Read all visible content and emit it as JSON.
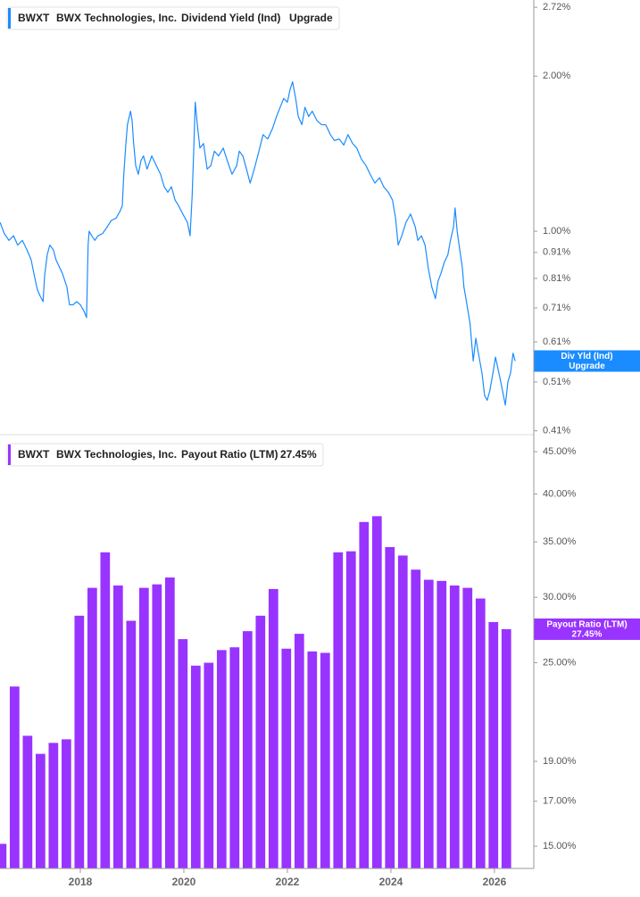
{
  "chart_data": [
    {
      "type": "line",
      "ticker": "BWXT",
      "company": "BWX Technologies, Inc.",
      "log_scale": true,
      "series": [
        {
          "name": "Dividend Yield (Ind)",
          "short_name": "Div Yld (Ind)",
          "status": "Upgrade",
          "color": "#1a8cff",
          "x": [
            2016.45,
            2016.53,
            2016.62,
            2016.71,
            2016.79,
            2016.88,
            2016.97,
            2017.05,
            2017.1,
            2017.17,
            2017.22,
            2017.28,
            2017.31,
            2017.36,
            2017.41,
            2017.48,
            2017.53,
            2017.6,
            2017.65,
            2017.74,
            2017.79,
            2017.86,
            2017.93,
            2018.0,
            2018.07,
            2018.12,
            2018.15,
            2018.17,
            2018.22,
            2018.28,
            2018.34,
            2018.43,
            2018.52,
            2018.6,
            2018.69,
            2018.76,
            2018.81,
            2018.84,
            2018.88,
            2018.91,
            2018.97,
            2019.0,
            2019.03,
            2019.07,
            2019.12,
            2019.17,
            2019.22,
            2019.29,
            2019.38,
            2019.47,
            2019.55,
            2019.62,
            2019.69,
            2019.76,
            2019.83,
            2019.9,
            2019.98,
            2020.07,
            2020.12,
            2020.16,
            2020.19,
            2020.22,
            2020.26,
            2020.31,
            2020.38,
            2020.45,
            2020.52,
            2020.59,
            2020.67,
            2020.76,
            2020.84,
            2020.93,
            2021.02,
            2021.07,
            2021.14,
            2021.21,
            2021.28,
            2021.36,
            2021.45,
            2021.53,
            2021.62,
            2021.71,
            2021.79,
            2021.86,
            2021.93,
            2022.0,
            2022.05,
            2022.1,
            2022.16,
            2022.21,
            2022.28,
            2022.34,
            2022.41,
            2022.48,
            2022.57,
            2022.66,
            2022.74,
            2022.83,
            2022.91,
            2023.0,
            2023.09,
            2023.17,
            2023.26,
            2023.34,
            2023.43,
            2023.52,
            2023.6,
            2023.69,
            2023.78,
            2023.86,
            2023.95,
            2024.03,
            2024.09,
            2024.14,
            2024.21,
            2024.29,
            2024.38,
            2024.47,
            2024.52,
            2024.59,
            2024.66,
            2024.72,
            2024.79,
            2024.86,
            2024.91,
            2024.97,
            2025.03,
            2025.1,
            2025.15,
            2025.21,
            2025.24,
            2025.28,
            2025.33,
            2025.38,
            2025.41,
            2025.48,
            2025.53,
            2025.59,
            2025.64,
            2025.69,
            2025.76,
            2025.81,
            2025.86,
            2025.91,
            2025.97,
            2026.02,
            2026.07,
            2026.14,
            2026.21,
            2026.26,
            2026.31,
            2026.36,
            2026.4
          ],
          "values": [
            1.04,
            0.99,
            0.96,
            0.98,
            0.94,
            0.96,
            0.92,
            0.88,
            0.83,
            0.77,
            0.75,
            0.73,
            0.82,
            0.9,
            0.94,
            0.92,
            0.88,
            0.85,
            0.83,
            0.78,
            0.72,
            0.72,
            0.73,
            0.72,
            0.7,
            0.68,
            0.94,
            1.0,
            0.98,
            0.96,
            0.98,
            0.99,
            1.02,
            1.05,
            1.06,
            1.09,
            1.12,
            1.29,
            1.48,
            1.61,
            1.71,
            1.64,
            1.48,
            1.34,
            1.29,
            1.37,
            1.4,
            1.32,
            1.4,
            1.34,
            1.29,
            1.22,
            1.19,
            1.22,
            1.15,
            1.12,
            1.08,
            1.04,
            0.98,
            1.17,
            1.43,
            1.78,
            1.61,
            1.45,
            1.48,
            1.32,
            1.34,
            1.43,
            1.4,
            1.45,
            1.37,
            1.29,
            1.34,
            1.43,
            1.4,
            1.32,
            1.24,
            1.32,
            1.43,
            1.54,
            1.51,
            1.58,
            1.67,
            1.74,
            1.81,
            1.78,
            1.88,
            1.95,
            1.81,
            1.67,
            1.61,
            1.74,
            1.67,
            1.71,
            1.64,
            1.61,
            1.61,
            1.54,
            1.5,
            1.51,
            1.47,
            1.54,
            1.48,
            1.45,
            1.38,
            1.34,
            1.29,
            1.24,
            1.27,
            1.22,
            1.19,
            1.15,
            1.06,
            0.94,
            0.98,
            1.04,
            1.08,
            1.02,
            0.96,
            0.98,
            0.94,
            0.85,
            0.78,
            0.74,
            0.8,
            0.83,
            0.87,
            0.9,
            0.96,
            1.02,
            1.11,
            1.0,
            0.92,
            0.85,
            0.78,
            0.71,
            0.66,
            0.56,
            0.62,
            0.58,
            0.53,
            0.48,
            0.47,
            0.49,
            0.53,
            0.57,
            0.54,
            0.5,
            0.46,
            0.51,
            0.53,
            0.58,
            0.56
          ]
        }
      ],
      "xlim": [
        2016.448,
        2026.76
      ],
      "ylim": [
        0.403,
        2.81
      ],
      "yticks": [
        {
          "value": 2.72,
          "label": "2.72%"
        },
        {
          "value": 2.0,
          "label": "2.00%"
        },
        {
          "value": 1.0,
          "label": "1.00%"
        },
        {
          "value": 0.91,
          "label": "0.91%"
        },
        {
          "value": 0.81,
          "label": "0.81%"
        },
        {
          "value": 0.71,
          "label": "0.71%"
        },
        {
          "value": 0.61,
          "label": "0.61%"
        },
        {
          "value": 0.51,
          "label": "0.51%"
        },
        {
          "value": 0.41,
          "label": "0.41%"
        }
      ]
    },
    {
      "type": "bar",
      "ticker": "BWXT",
      "company": "BWX Technologies, Inc.",
      "log_scale": true,
      "series": [
        {
          "name": "Payout Ratio (LTM)",
          "color": "#9933ff",
          "x": [
            2016.48,
            2016.73,
            2016.98,
            2017.23,
            2017.48,
            2017.73,
            2017.98,
            2018.23,
            2018.48,
            2018.73,
            2018.98,
            2019.23,
            2019.48,
            2019.73,
            2019.98,
            2020.23,
            2020.48,
            2020.73,
            2020.98,
            2021.23,
            2021.48,
            2021.73,
            2021.98,
            2022.23,
            2022.48,
            2022.73,
            2022.98,
            2023.23,
            2023.48,
            2023.73,
            2023.98,
            2024.23,
            2024.48,
            2024.73,
            2024.98,
            2025.23,
            2025.48,
            2025.73,
            2025.98,
            2026.23
          ],
          "values": [
            15.1,
            23.4,
            20.4,
            19.4,
            20.0,
            20.2,
            28.5,
            30.8,
            34.0,
            31.0,
            28.1,
            30.8,
            31.1,
            31.7,
            26.7,
            24.8,
            25.0,
            25.9,
            26.1,
            27.3,
            28.5,
            30.7,
            26.0,
            27.1,
            25.8,
            25.7,
            34.0,
            34.1,
            37.0,
            37.6,
            34.5,
            33.7,
            32.4,
            31.5,
            31.4,
            31.0,
            30.8,
            29.9,
            28.0,
            27.45
          ],
          "value_labels": [
            null,
            null,
            null,
            null,
            null,
            null,
            null,
            null,
            null,
            null,
            null,
            null,
            null,
            null,
            null,
            null,
            null,
            null,
            null,
            null,
            null,
            null,
            null,
            null,
            null,
            null,
            null,
            null,
            null,
            null,
            null,
            null,
            null,
            null,
            null,
            null,
            null,
            null,
            null,
            "27.45%"
          ]
        }
      ],
      "xlim": [
        2016.448,
        2026.76
      ],
      "ylim": [
        14.1,
        46.6
      ],
      "xticks": [
        2018,
        2020,
        2022,
        2024,
        2026
      ],
      "yticks": [
        {
          "value": 45,
          "label": "45.00%"
        },
        {
          "value": 40,
          "label": "40.00%"
        },
        {
          "value": 35,
          "label": "35.00%"
        },
        {
          "value": 30,
          "label": "30.00%"
        },
        {
          "value": 25,
          "label": "25.00%"
        },
        {
          "value": 19,
          "label": "19.00%"
        },
        {
          "value": 17,
          "label": "17.00%"
        },
        {
          "value": 15,
          "label": "15.00%"
        }
      ]
    }
  ]
}
